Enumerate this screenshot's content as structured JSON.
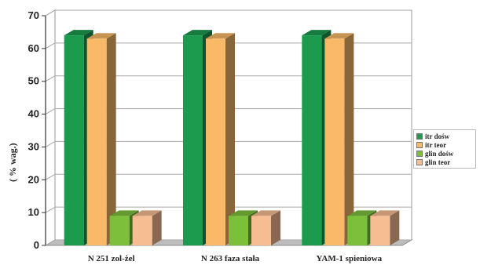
{
  "chart_data": {
    "type": "bar",
    "title": "",
    "xlabel": "",
    "ylabel": "( % wag.)",
    "ylim": [
      0,
      70
    ],
    "yticks": [
      "0",
      "10",
      "20",
      "30",
      "40",
      "50",
      "60",
      "70"
    ],
    "categories": [
      "N 251 zol-żel",
      "N 263 faza stała",
      "YAM-1 spieniowa"
    ],
    "series": [
      {
        "name": "itr dośw",
        "values": [
          64,
          64,
          64
        ],
        "color": "#1c9a4e"
      },
      {
        "name": "itr teor",
        "values": [
          63,
          63,
          63
        ],
        "color": "#f9b968"
      },
      {
        "name": "glin dośw",
        "values": [
          9,
          9,
          9
        ],
        "color": "#7cbf3a"
      },
      {
        "name": "glin teor",
        "values": [
          9,
          9,
          9
        ],
        "color": "#f7bd92"
      }
    ],
    "grid": true,
    "legend": "right",
    "bar_style": "3d"
  }
}
